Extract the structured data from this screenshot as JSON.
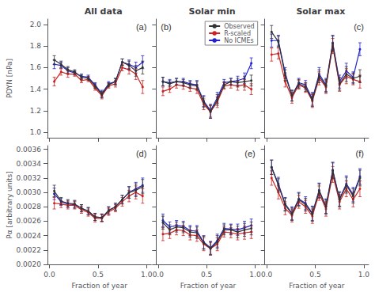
{
  "chart_data": [
    {
      "type": "line",
      "title": "All data",
      "annotation": "(a)",
      "ylabel": "PDYN [nPa]",
      "marker": "circle",
      "grid": false,
      "tick_labels": "y",
      "xlim": [
        -0.02,
        1.05
      ],
      "xticks": [
        0,
        0.5,
        1
      ],
      "ylim": [
        0.95,
        2.05
      ],
      "yticks": [
        {
          "value": 1.0,
          "label": "1.0"
        },
        1.2,
        1.4,
        1.6,
        1.8,
        {
          "value": 2.0,
          "label": "2.0"
        }
      ],
      "x": [
        0.05,
        0.12,
        0.19,
        0.26,
        0.33,
        0.4,
        0.47,
        0.54,
        0.61,
        0.68,
        0.75,
        0.82,
        0.89,
        0.96
      ],
      "series": [
        {
          "name": "Observed",
          "color": "#333333",
          "values": [
            1.67,
            1.63,
            1.58,
            1.56,
            1.51,
            1.5,
            1.43,
            1.35,
            1.44,
            1.47,
            1.65,
            1.62,
            1.57,
            1.6
          ],
          "errors": [
            0.04,
            0.03,
            0.03,
            0.02,
            0.02,
            0.02,
            0.02,
            0.03,
            0.02,
            0.03,
            0.03,
            0.04,
            0.05,
            0.06
          ]
        },
        {
          "name": "R-scaled",
          "color": "#cc2222",
          "values": [
            1.47,
            1.56,
            1.54,
            1.54,
            1.48,
            1.49,
            1.41,
            1.34,
            1.43,
            1.45,
            1.6,
            1.58,
            1.54,
            1.42
          ],
          "errors": [
            0.04,
            0.03,
            0.03,
            0.02,
            0.02,
            0.02,
            0.02,
            0.03,
            0.02,
            0.03,
            0.03,
            0.04,
            0.05,
            0.06
          ]
        },
        {
          "name": "No ICMEs",
          "color": "#2222cc",
          "values": [
            1.63,
            1.62,
            1.57,
            1.55,
            1.52,
            1.51,
            1.44,
            1.36,
            1.45,
            1.47,
            1.65,
            1.63,
            1.6,
            1.65
          ],
          "errors": [
            0.04,
            0.03,
            0.03,
            0.02,
            0.02,
            0.02,
            0.02,
            0.03,
            0.02,
            0.03,
            0.03,
            0.04,
            0.05,
            0.06
          ]
        }
      ]
    },
    {
      "type": "line",
      "title": "Solar min",
      "annotation": "(b)",
      "marker": "circle",
      "grid": false,
      "tick_labels": false,
      "legend": "upper right",
      "xlim": [
        -0.02,
        1.05
      ],
      "xticks": [
        0,
        0.5,
        1
      ],
      "ylim": [
        0.95,
        2.05
      ],
      "yticks": [
        1,
        1.2,
        1.4,
        1.6,
        1.8,
        2
      ],
      "x": [
        0.05,
        0.12,
        0.19,
        0.26,
        0.33,
        0.4,
        0.47,
        0.54,
        0.61,
        0.68,
        0.75,
        0.82,
        0.89,
        0.96
      ],
      "series": [
        {
          "name": "Observed",
          "color": "#333333",
          "values": [
            1.47,
            1.45,
            1.47,
            1.46,
            1.44,
            1.43,
            1.28,
            1.19,
            1.3,
            1.44,
            1.47,
            1.46,
            1.47,
            1.48
          ],
          "errors": [
            0.04,
            0.03,
            0.03,
            0.03,
            0.03,
            0.04,
            0.05,
            0.06,
            0.05,
            0.03,
            0.03,
            0.04,
            0.05,
            0.05
          ]
        },
        {
          "name": "R-scaled",
          "color": "#cc2222",
          "values": [
            1.38,
            1.4,
            1.44,
            1.43,
            1.41,
            1.4,
            1.26,
            1.19,
            1.28,
            1.43,
            1.44,
            1.43,
            1.44,
            1.4
          ],
          "errors": [
            0.04,
            0.03,
            0.03,
            0.03,
            0.03,
            0.04,
            0.05,
            0.06,
            0.05,
            0.03,
            0.03,
            0.04,
            0.05,
            0.05
          ]
        },
        {
          "name": "No ICMEs",
          "color": "#2222cc",
          "values": [
            1.47,
            1.46,
            1.47,
            1.47,
            1.45,
            1.44,
            1.29,
            1.2,
            1.32,
            1.46,
            1.47,
            1.48,
            1.5,
            1.64
          ],
          "errors": [
            0.04,
            0.03,
            0.03,
            0.03,
            0.03,
            0.04,
            0.05,
            0.06,
            0.05,
            0.03,
            0.03,
            0.04,
            0.05,
            0.05
          ]
        }
      ]
    },
    {
      "type": "line",
      "title": "Solar max",
      "annotation": "(c)",
      "marker": "circle",
      "grid": false,
      "tick_labels": false,
      "xlim": [
        -0.02,
        1.05
      ],
      "xticks": [
        0,
        0.5,
        1
      ],
      "ylim": [
        0.95,
        2.05
      ],
      "yticks": [
        1,
        1.2,
        1.4,
        1.6,
        1.8,
        2
      ],
      "x": [
        0.05,
        0.12,
        0.19,
        0.26,
        0.33,
        0.4,
        0.47,
        0.54,
        0.61,
        0.68,
        0.75,
        0.82,
        0.89,
        0.96
      ],
      "series": [
        {
          "name": "Observed",
          "color": "#333333",
          "values": [
            1.93,
            1.84,
            1.53,
            1.34,
            1.45,
            1.42,
            1.3,
            1.52,
            1.43,
            1.82,
            1.45,
            1.54,
            1.5,
            1.52
          ],
          "errors": [
            0.06,
            0.05,
            0.05,
            0.05,
            0.04,
            0.04,
            0.06,
            0.06,
            0.06,
            0.07,
            0.06,
            0.07,
            0.05,
            0.06
          ]
        },
        {
          "name": "R-scaled",
          "color": "#cc2222",
          "values": [
            1.72,
            1.73,
            1.47,
            1.32,
            1.44,
            1.41,
            1.29,
            1.5,
            1.42,
            1.8,
            1.44,
            1.52,
            1.49,
            1.47
          ],
          "errors": [
            0.06,
            0.05,
            0.05,
            0.05,
            0.04,
            0.04,
            0.06,
            0.06,
            0.06,
            0.07,
            0.06,
            0.07,
            0.05,
            0.06
          ]
        },
        {
          "name": "No ICMEs",
          "color": "#2222cc",
          "values": [
            1.85,
            1.85,
            1.55,
            1.34,
            1.46,
            1.44,
            1.31,
            1.54,
            1.44,
            1.83,
            1.47,
            1.57,
            1.51,
            1.77
          ],
          "errors": [
            0.06,
            0.05,
            0.05,
            0.05,
            0.04,
            0.04,
            0.06,
            0.06,
            0.06,
            0.07,
            0.06,
            0.07,
            0.05,
            0.06
          ]
        }
      ]
    },
    {
      "type": "line",
      "annotation": "(d)",
      "xlabel": "Fraction of year",
      "ylabel": "Pα [arbitrary units]",
      "marker": "circle",
      "grid": false,
      "xlim": [
        -0.02,
        1.05
      ],
      "xticks": [
        {
          "value": 0,
          "label": "0.0"
        },
        0.5,
        {
          "value": 1,
          "label": "1.0"
        }
      ],
      "ylim": [
        0.002,
        0.00365
      ],
      "yticks": [
        {
          "value": 0.002,
          "label": "0.0020"
        },
        0.0022,
        0.0024,
        0.0026,
        0.0028,
        {
          "value": 0.003,
          "label": "0.0030"
        },
        0.0032,
        0.0034,
        0.0036
      ],
      "x": [
        0.05,
        0.12,
        0.19,
        0.26,
        0.33,
        0.4,
        0.47,
        0.54,
        0.61,
        0.68,
        0.75,
        0.82,
        0.89,
        0.96
      ],
      "series": [
        {
          "name": "Observed",
          "color": "#333333",
          "values": [
            0.00302,
            0.00288,
            0.00285,
            0.00284,
            0.00278,
            0.00274,
            0.00266,
            0.00265,
            0.00275,
            0.0028,
            0.0029,
            0.003,
            0.00303,
            0.00308
          ],
          "errors": [
            8e-05,
            5e-05,
            5e-05,
            5e-05,
            5e-05,
            5e-05,
            5e-05,
            5e-05,
            5e-05,
            5e-05,
            6e-05,
            8e-05,
            9e-05,
            0.0001
          ]
        },
        {
          "name": "R-scaled",
          "color": "#cc2222",
          "values": [
            0.00285,
            0.00284,
            0.00282,
            0.00282,
            0.00276,
            0.00272,
            0.00264,
            0.00264,
            0.00273,
            0.00278,
            0.00287,
            0.00295,
            0.003,
            0.00295
          ],
          "errors": [
            8e-05,
            5e-05,
            5e-05,
            5e-05,
            5e-05,
            5e-05,
            5e-05,
            5e-05,
            5e-05,
            5e-05,
            6e-05,
            8e-05,
            9e-05,
            0.0001
          ]
        },
        {
          "name": "No ICMEs",
          "color": "#2222cc",
          "values": [
            0.00298,
            0.00287,
            0.00284,
            0.00283,
            0.00278,
            0.00274,
            0.00266,
            0.00265,
            0.00275,
            0.0028,
            0.0029,
            0.003,
            0.00305,
            0.0031
          ],
          "errors": [
            8e-05,
            5e-05,
            5e-05,
            5e-05,
            5e-05,
            5e-05,
            5e-05,
            5e-05,
            5e-05,
            5e-05,
            6e-05,
            8e-05,
            9e-05,
            0.0001
          ]
        }
      ]
    },
    {
      "type": "line",
      "annotation": "(e)",
      "xlabel": "Fraction of year",
      "marker": "circle",
      "grid": false,
      "tick_labels": "x",
      "xlim": [
        -0.02,
        1.05
      ],
      "xticks": [
        {
          "value": 0,
          "label": "0.0"
        },
        0.5,
        {
          "value": 1,
          "label": "1.0"
        }
      ],
      "ylim": [
        0.002,
        0.00365
      ],
      "yticks": [
        0.002,
        0.0022,
        0.0024,
        0.0026,
        0.0028,
        0.003,
        0.0032,
        0.0034,
        0.0036
      ],
      "x": [
        0.05,
        0.12,
        0.19,
        0.26,
        0.33,
        0.4,
        0.47,
        0.54,
        0.61,
        0.68,
        0.75,
        0.82,
        0.89,
        0.96
      ],
      "series": [
        {
          "name": "Observed",
          "color": "#333333",
          "values": [
            0.00258,
            0.00248,
            0.00252,
            0.00251,
            0.00245,
            0.00244,
            0.0023,
            0.00222,
            0.00231,
            0.00248,
            0.00248,
            0.00245,
            0.00248,
            0.0025
          ],
          "errors": [
            9e-05,
            7e-05,
            7e-05,
            7e-05,
            7e-05,
            8e-05,
            9e-05,
            9e-05,
            9e-05,
            7e-05,
            7e-05,
            8e-05,
            9e-05,
            9e-05
          ]
        },
        {
          "name": "R-scaled",
          "color": "#cc2222",
          "values": [
            0.00242,
            0.00243,
            0.00248,
            0.00247,
            0.00241,
            0.0024,
            0.00228,
            0.00222,
            0.00228,
            0.00245,
            0.00244,
            0.00242,
            0.00244,
            0.00245
          ],
          "errors": [
            9e-05,
            7e-05,
            7e-05,
            7e-05,
            7e-05,
            8e-05,
            9e-05,
            9e-05,
            9e-05,
            7e-05,
            7e-05,
            8e-05,
            9e-05,
            9e-05
          ]
        },
        {
          "name": "No ICMEs",
          "color": "#2222cc",
          "values": [
            0.00261,
            0.00252,
            0.00254,
            0.00253,
            0.00247,
            0.00246,
            0.00231,
            0.00223,
            0.00233,
            0.0025,
            0.00249,
            0.00248,
            0.00251,
            0.00254
          ],
          "errors": [
            9e-05,
            7e-05,
            7e-05,
            7e-05,
            7e-05,
            8e-05,
            9e-05,
            9e-05,
            9e-05,
            7e-05,
            7e-05,
            8e-05,
            9e-05,
            9e-05
          ]
        }
      ]
    },
    {
      "type": "line",
      "annotation": "(f)",
      "xlabel": "Fraction of year",
      "marker": "circle",
      "grid": false,
      "tick_labels": "x",
      "xlim": [
        -0.02,
        1.05
      ],
      "xticks": [
        {
          "value": 0,
          "label": "0.0"
        },
        0.5,
        {
          "value": 1,
          "label": "1.0"
        }
      ],
      "ylim": [
        0.002,
        0.00365
      ],
      "yticks": [
        0.002,
        0.0022,
        0.0024,
        0.0026,
        0.0028,
        0.003,
        0.0032,
        0.0034,
        0.0036
      ],
      "x": [
        0.05,
        0.12,
        0.19,
        0.26,
        0.33,
        0.4,
        0.47,
        0.54,
        0.61,
        0.68,
        0.75,
        0.82,
        0.89,
        0.96
      ],
      "series": [
        {
          "name": "Observed",
          "color": "#333333",
          "values": [
            0.00335,
            0.0031,
            0.00283,
            0.0027,
            0.0029,
            0.00283,
            0.0027,
            0.00302,
            0.0028,
            0.0033,
            0.0029,
            0.0031,
            0.00295,
            0.0032
          ],
          "errors": [
            0.0001,
            9e-05,
            9e-05,
            9e-05,
            9e-05,
            9e-05,
            0.0001,
            0.0001,
            0.0001,
            0.00011,
            0.0001,
            0.00011,
            0.0001,
            0.00011
          ]
        },
        {
          "name": "R-scaled",
          "color": "#cc2222",
          "values": [
            0.0032,
            0.003,
            0.00278,
            0.00268,
            0.00287,
            0.0028,
            0.00267,
            0.00299,
            0.00277,
            0.00325,
            0.00287,
            0.00305,
            0.0029,
            0.00305
          ],
          "errors": [
            0.0001,
            9e-05,
            9e-05,
            9e-05,
            9e-05,
            9e-05,
            0.0001,
            0.0001,
            0.0001,
            0.00011,
            0.0001,
            0.00011,
            0.0001,
            0.00011
          ]
        },
        {
          "name": "No ICMEs",
          "color": "#2222cc",
          "values": [
            0.00335,
            0.00312,
            0.00284,
            0.00271,
            0.00291,
            0.00285,
            0.00271,
            0.00303,
            0.00281,
            0.00331,
            0.00291,
            0.00312,
            0.00297,
            0.00322
          ],
          "errors": [
            0.0001,
            9e-05,
            9e-05,
            9e-05,
            9e-05,
            9e-05,
            0.0001,
            0.0001,
            0.0001,
            0.00011,
            0.0001,
            0.00011,
            0.0001,
            0.00011
          ]
        }
      ]
    }
  ]
}
